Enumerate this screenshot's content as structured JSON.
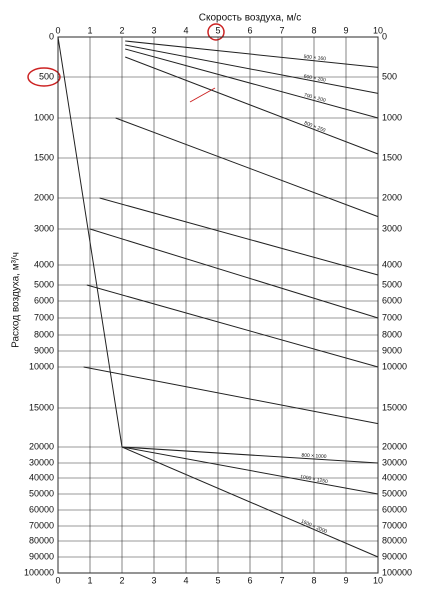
{
  "chart_data": {
    "type": "line",
    "title": "Скорость воздуха, м/с",
    "ylabel": "Расход воздуха, м³/ч",
    "xlim": [
      0,
      10
    ],
    "xticks": [
      0,
      1,
      2,
      3,
      4,
      5,
      6,
      7,
      8,
      9,
      10
    ],
    "ylim": [
      0,
      100000
    ],
    "yticks": [
      0,
      500,
      1000,
      1500,
      2000,
      3000,
      4000,
      5000,
      6000,
      7000,
      8000,
      9000,
      10000,
      15000,
      20000,
      30000,
      40000,
      50000,
      60000,
      70000,
      80000,
      90000,
      100000
    ],
    "grid": true,
    "color": "#222222",
    "series": [
      {
        "x": [
          0,
          2
        ],
        "values": [
          0,
          20000
        ]
      },
      {
        "name": "500 × 160",
        "x": [
          2.1,
          10
        ],
        "values": [
          50,
          380
        ]
      },
      {
        "name": "600 × 200",
        "x": [
          2.1,
          10
        ],
        "values": [
          100,
          700
        ]
      },
      {
        "name": "700 × 200",
        "x": [
          2.1,
          10
        ],
        "values": [
          150,
          1000
        ]
      },
      {
        "name": "800 × 250",
        "x": [
          2.1,
          10
        ],
        "values": [
          250,
          1450
        ]
      },
      {
        "x": [
          1.8,
          10
        ],
        "values": [
          1000,
          2600
        ]
      },
      {
        "x": [
          1.3,
          10
        ],
        "values": [
          2000,
          4500
        ]
      },
      {
        "x": [
          1.0,
          10
        ],
        "values": [
          3000,
          7000
        ]
      },
      {
        "x": [
          0.9,
          10
        ],
        "values": [
          5000,
          10000
        ]
      },
      {
        "x": [
          0.8,
          10
        ],
        "values": [
          10000,
          17000
        ]
      },
      {
        "name": "800 × 1000",
        "x": [
          2,
          10
        ],
        "values": [
          20000,
          30000
        ]
      },
      {
        "name": "1000 × 1250",
        "x": [
          2,
          10
        ],
        "values": [
          20000,
          50000
        ]
      },
      {
        "name": "1600 × 2000",
        "x": [
          2,
          10
        ],
        "values": [
          20000,
          90000
        ]
      }
    ]
  }
}
